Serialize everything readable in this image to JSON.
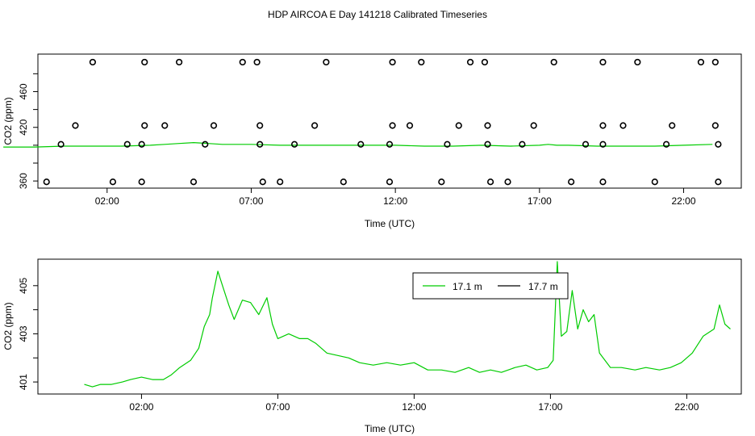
{
  "title": "HDP AIRCOA E  Day 141218  Calibrated Timeseries",
  "chart_data": [
    {
      "type": "scatter",
      "name": "top-panel",
      "xlabel": "Time (UTC)",
      "ylabel": "CO2 (ppm)",
      "xlim": [
        -0.4,
        24.0
      ],
      "ylim": [
        352,
        502
      ],
      "xticks": [
        {
          "value": 2,
          "label": "02:00"
        },
        {
          "value": 7,
          "label": "07:00"
        },
        {
          "value": 12,
          "label": "12:00"
        },
        {
          "value": 17,
          "label": "17:00"
        },
        {
          "value": 22,
          "label": "22:00"
        }
      ],
      "yticks": [
        {
          "value": 360,
          "label": "360"
        },
        {
          "value": 380,
          "label": ""
        },
        {
          "value": 400,
          "label": ""
        },
        {
          "value": 420,
          "label": "420"
        },
        {
          "value": 440,
          "label": ""
        },
        {
          "value": 460,
          "label": "460"
        },
        {
          "value": 480,
          "label": ""
        }
      ],
      "circle_color": "#000000",
      "points": [
        {
          "x": 1.5,
          "y": 493
        },
        {
          "x": 3.3,
          "y": 493
        },
        {
          "x": 4.5,
          "y": 493
        },
        {
          "x": 6.7,
          "y": 493
        },
        {
          "x": 7.2,
          "y": 493
        },
        {
          "x": 9.6,
          "y": 493
        },
        {
          "x": 11.9,
          "y": 493
        },
        {
          "x": 12.9,
          "y": 493
        },
        {
          "x": 14.6,
          "y": 493
        },
        {
          "x": 15.1,
          "y": 493
        },
        {
          "x": 17.5,
          "y": 493
        },
        {
          "x": 19.2,
          "y": 493
        },
        {
          "x": 20.4,
          "y": 493
        },
        {
          "x": 22.6,
          "y": 493
        },
        {
          "x": 23.1,
          "y": 493
        },
        {
          "x": 0.9,
          "y": 422
        },
        {
          "x": 3.3,
          "y": 422
        },
        {
          "x": 4.0,
          "y": 422
        },
        {
          "x": 5.7,
          "y": 422
        },
        {
          "x": 7.3,
          "y": 422
        },
        {
          "x": 9.2,
          "y": 422
        },
        {
          "x": 11.9,
          "y": 422
        },
        {
          "x": 12.5,
          "y": 422
        },
        {
          "x": 14.2,
          "y": 422
        },
        {
          "x": 15.2,
          "y": 422
        },
        {
          "x": 16.8,
          "y": 422
        },
        {
          "x": 19.2,
          "y": 422
        },
        {
          "x": 19.9,
          "y": 422
        },
        {
          "x": 21.6,
          "y": 422
        },
        {
          "x": 23.1,
          "y": 422
        },
        {
          "x": 0.4,
          "y": 401
        },
        {
          "x": 2.7,
          "y": 401
        },
        {
          "x": 3.2,
          "y": 401
        },
        {
          "x": 5.4,
          "y": 401
        },
        {
          "x": 7.3,
          "y": 401
        },
        {
          "x": 8.5,
          "y": 401
        },
        {
          "x": 10.8,
          "y": 401
        },
        {
          "x": 11.8,
          "y": 401
        },
        {
          "x": 13.8,
          "y": 401
        },
        {
          "x": 15.2,
          "y": 401
        },
        {
          "x": 16.4,
          "y": 401
        },
        {
          "x": 18.6,
          "y": 401
        },
        {
          "x": 19.2,
          "y": 401
        },
        {
          "x": 21.4,
          "y": 401
        },
        {
          "x": 23.2,
          "y": 401
        },
        {
          "x": -0.1,
          "y": 359
        },
        {
          "x": 2.2,
          "y": 359
        },
        {
          "x": 3.2,
          "y": 359
        },
        {
          "x": 5.0,
          "y": 359
        },
        {
          "x": 7.4,
          "y": 359
        },
        {
          "x": 8.0,
          "y": 359
        },
        {
          "x": 10.2,
          "y": 359
        },
        {
          "x": 11.8,
          "y": 359
        },
        {
          "x": 13.6,
          "y": 359
        },
        {
          "x": 15.3,
          "y": 359
        },
        {
          "x": 15.9,
          "y": 359
        },
        {
          "x": 18.1,
          "y": 359
        },
        {
          "x": 19.2,
          "y": 359
        },
        {
          "x": 21.0,
          "y": 359
        },
        {
          "x": 23.2,
          "y": 359
        }
      ],
      "series": [
        {
          "color": "#00cc00",
          "x": [
            -1.6,
            -0.5,
            0.5,
            1.5,
            2.5,
            3.5,
            4.0,
            4.5,
            5.0,
            5.5,
            6.0,
            7.0,
            8.0,
            9.0,
            10.0,
            11.0,
            12.0,
            13.0,
            14.0,
            15.0,
            16.0,
            17.0,
            17.3,
            17.6,
            18.0,
            19.0,
            20.0,
            21.0,
            22.0,
            23.0
          ],
          "y": [
            398,
            398,
            399,
            399,
            399,
            400,
            401,
            402,
            403,
            402,
            401,
            401,
            400,
            400,
            400,
            400,
            400,
            399,
            399,
            400,
            399,
            400,
            401,
            400,
            400,
            399,
            399,
            399,
            400,
            401
          ]
        }
      ]
    },
    {
      "type": "line",
      "name": "bottom-panel",
      "xlabel": "Time (UTC)",
      "ylabel": "CO2 (ppm)",
      "xlim": [
        -1.8,
        24.0
      ],
      "ylim": [
        400.5,
        406.1
      ],
      "xticks": [
        {
          "value": 2,
          "label": "02:00"
        },
        {
          "value": 7,
          "label": "07:00"
        },
        {
          "value": 12,
          "label": "12:00"
        },
        {
          "value": 17,
          "label": "17:00"
        },
        {
          "value": 22,
          "label": "22:00"
        }
      ],
      "yticks": [
        {
          "value": 401,
          "label": "401"
        },
        {
          "value": 402,
          "label": ""
        },
        {
          "value": 403,
          "label": "403"
        },
        {
          "value": 404,
          "label": ""
        },
        {
          "value": 405,
          "label": "405"
        }
      ],
      "legend": {
        "position": "top-center",
        "entries": [
          "17.1 m",
          "17.7 m"
        ],
        "colors": [
          "#00cc00",
          "#000000"
        ]
      },
      "series": [
        {
          "name": "17.1 m",
          "color": "#00cc00",
          "x": [
            -0.1,
            0.2,
            0.5,
            0.9,
            1.3,
            1.6,
            2.0,
            2.4,
            2.8,
            3.1,
            3.4,
            3.8,
            4.1,
            4.3,
            4.5,
            4.6,
            4.8,
            5.0,
            5.2,
            5.4,
            5.7,
            6.0,
            6.3,
            6.6,
            6.8,
            7.0,
            7.4,
            7.8,
            8.1,
            8.4,
            8.8,
            9.2,
            9.6,
            10.0,
            10.5,
            11.0,
            11.5,
            12.0,
            12.5,
            13.0,
            13.5,
            14.0,
            14.4,
            14.8,
            15.2,
            15.7,
            16.1,
            16.5,
            16.9,
            17.1,
            17.25,
            17.4,
            17.6,
            17.8,
            18.0,
            18.2,
            18.4,
            18.6,
            18.8,
            19.2,
            19.6,
            20.1,
            20.5,
            21.0,
            21.4,
            21.8,
            22.2,
            22.6,
            23.0,
            23.2,
            23.4,
            23.6
          ],
          "y": [
            400.9,
            400.8,
            400.9,
            400.9,
            401.0,
            401.1,
            401.2,
            401.1,
            401.1,
            401.3,
            401.6,
            401.9,
            402.4,
            403.3,
            403.8,
            404.5,
            405.6,
            404.9,
            404.2,
            403.6,
            404.4,
            404.3,
            403.8,
            404.5,
            403.4,
            402.8,
            403.0,
            402.8,
            402.8,
            402.6,
            402.2,
            402.1,
            402.0,
            401.8,
            401.7,
            401.8,
            401.7,
            401.8,
            401.5,
            401.5,
            401.4,
            401.6,
            401.4,
            401.5,
            401.4,
            401.6,
            401.7,
            401.5,
            401.6,
            401.9,
            406.0,
            402.9,
            403.1,
            404.8,
            403.2,
            404.0,
            403.5,
            403.8,
            402.2,
            401.6,
            401.6,
            401.5,
            401.6,
            401.5,
            401.6,
            401.8,
            402.2,
            402.9,
            403.2,
            404.2,
            403.4,
            403.2
          ]
        }
      ]
    }
  ]
}
